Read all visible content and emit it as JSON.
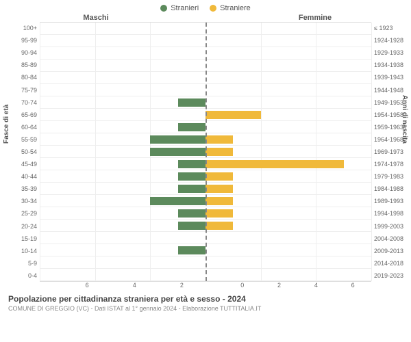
{
  "legend": {
    "male": {
      "label": "Stranieri",
      "color": "#5c8a5c"
    },
    "female": {
      "label": "Straniere",
      "color": "#f0b93a"
    }
  },
  "headers": {
    "male": "Maschi",
    "female": "Femmine"
  },
  "axis_titles": {
    "left": "Fasce di età",
    "right": "Anni di nascita"
  },
  "chart": {
    "type": "population-pyramid",
    "xmax": 6,
    "xticks": [
      0,
      2,
      4,
      6
    ],
    "grid_color": "#eeeeee",
    "centerline_color": "#888888",
    "bar_male_color": "#5c8a5c",
    "bar_female_color": "#f0b93a",
    "background_color": "#ffffff",
    "label_fontsize": 9,
    "rows": [
      {
        "age": "100+",
        "birth": "≤ 1923",
        "m": 0,
        "f": 0
      },
      {
        "age": "95-99",
        "birth": "1924-1928",
        "m": 0,
        "f": 0
      },
      {
        "age": "90-94",
        "birth": "1929-1933",
        "m": 0,
        "f": 0
      },
      {
        "age": "85-89",
        "birth": "1934-1938",
        "m": 0,
        "f": 0
      },
      {
        "age": "80-84",
        "birth": "1939-1943",
        "m": 0,
        "f": 0
      },
      {
        "age": "75-79",
        "birth": "1944-1948",
        "m": 0,
        "f": 0
      },
      {
        "age": "70-74",
        "birth": "1949-1953",
        "m": 1,
        "f": 0
      },
      {
        "age": "65-69",
        "birth": "1954-1958",
        "m": 0,
        "f": 2
      },
      {
        "age": "60-64",
        "birth": "1959-1963",
        "m": 1,
        "f": 0
      },
      {
        "age": "55-59",
        "birth": "1964-1968",
        "m": 2,
        "f": 1
      },
      {
        "age": "50-54",
        "birth": "1969-1973",
        "m": 2,
        "f": 1
      },
      {
        "age": "45-49",
        "birth": "1974-1978",
        "m": 1,
        "f": 5
      },
      {
        "age": "40-44",
        "birth": "1979-1983",
        "m": 1,
        "f": 1
      },
      {
        "age": "35-39",
        "birth": "1984-1988",
        "m": 1,
        "f": 1
      },
      {
        "age": "30-34",
        "birth": "1989-1993",
        "m": 2,
        "f": 1
      },
      {
        "age": "25-29",
        "birth": "1994-1998",
        "m": 1,
        "f": 1
      },
      {
        "age": "20-24",
        "birth": "1999-2003",
        "m": 1,
        "f": 1
      },
      {
        "age": "15-19",
        "birth": "2004-2008",
        "m": 0,
        "f": 0
      },
      {
        "age": "10-14",
        "birth": "2009-2013",
        "m": 1,
        "f": 0
      },
      {
        "age": "5-9",
        "birth": "2014-2018",
        "m": 0,
        "f": 0
      },
      {
        "age": "0-4",
        "birth": "2019-2023",
        "m": 0,
        "f": 0
      }
    ]
  },
  "footer": {
    "title": "Popolazione per cittadinanza straniera per età e sesso - 2024",
    "subtitle": "COMUNE DI GREGGIO (VC) - Dati ISTAT al 1° gennaio 2024 - Elaborazione TUTTITALIA.IT"
  }
}
